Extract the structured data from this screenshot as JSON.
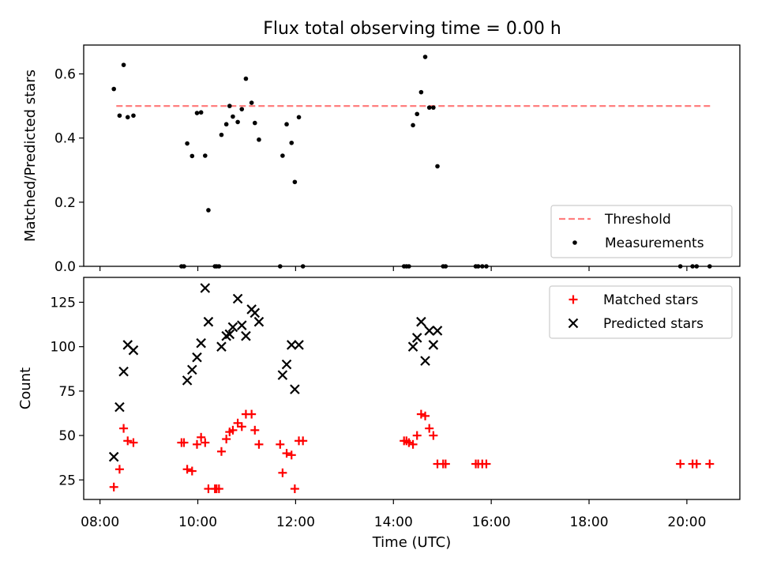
{
  "title": "Flux total observing time = 0.00 h",
  "colors": {
    "measurement": "#000000",
    "threshold": "#ff7f7f",
    "matched": "#ff0000",
    "predicted": "#000000"
  },
  "chart_data": [
    {
      "type": "scatter",
      "panel": "top",
      "title": "Flux total observing time = 0.00 h",
      "xlabel": "",
      "ylabel": "Matched/Predicted stars",
      "x_axis": "time (UTC)",
      "xlim": [
        "07:40",
        "21:05"
      ],
      "ylim": [
        0,
        0.69
      ],
      "yticks": [
        0.0,
        0.2,
        0.4,
        0.6
      ],
      "ytick_labels": [
        "0.0",
        "0.2",
        "0.4",
        "0.6"
      ],
      "grid": false,
      "legend": {
        "position": "lower right",
        "entries": [
          {
            "label": "Threshold",
            "marker": "dashed-line",
            "color": "#ff7f7f"
          },
          {
            "label": "Measurements",
            "marker": "dot",
            "color": "#000000"
          }
        ]
      },
      "threshold": {
        "value": 0.5,
        "x_start": "08:20",
        "x_end": "20:30",
        "style": "dashed",
        "color": "#ff7f7f"
      },
      "series": [
        {
          "name": "Measurements",
          "marker": "dot",
          "color": "#000000",
          "points": [
            [
              "08:17",
              0.553
            ],
            [
              "08:24",
              0.47
            ],
            [
              "08:29",
              0.628
            ],
            [
              "08:34",
              0.465
            ],
            [
              "08:41",
              0.47
            ],
            [
              "09:40",
              0.0
            ],
            [
              "09:43",
              0.0
            ],
            [
              "09:47",
              0.383
            ],
            [
              "09:53",
              0.344
            ],
            [
              "09:59",
              0.478
            ],
            [
              "10:04",
              0.48
            ],
            [
              "10:09",
              0.345
            ],
            [
              "10:13",
              0.175
            ],
            [
              "10:21",
              0.0
            ],
            [
              "10:23",
              0.0
            ],
            [
              "10:26",
              0.0
            ],
            [
              "10:29",
              0.41
            ],
            [
              "10:35",
              0.443
            ],
            [
              "10:39",
              0.5
            ],
            [
              "10:43",
              0.467
            ],
            [
              "10:49",
              0.45
            ],
            [
              "10:54",
              0.49
            ],
            [
              "10:59",
              0.585
            ],
            [
              "11:06",
              0.51
            ],
            [
              "11:10",
              0.447
            ],
            [
              "11:15",
              0.395
            ],
            [
              "11:41",
              0.0
            ],
            [
              "11:44",
              0.345
            ],
            [
              "11:49",
              0.443
            ],
            [
              "11:55",
              0.385
            ],
            [
              "11:59",
              0.263
            ],
            [
              "12:04",
              0.465
            ],
            [
              "12:09",
              0.0
            ],
            [
              "14:13",
              0.0
            ],
            [
              "14:16",
              0.0
            ],
            [
              "14:19",
              0.0
            ],
            [
              "14:24",
              0.44
            ],
            [
              "14:29",
              0.475
            ],
            [
              "14:34",
              0.543
            ],
            [
              "14:39",
              0.653
            ],
            [
              "14:44",
              0.495
            ],
            [
              "14:49",
              0.495
            ],
            [
              "14:54",
              0.312
            ],
            [
              "15:01",
              0.0
            ],
            [
              "15:04",
              0.0
            ],
            [
              "15:41",
              0.0
            ],
            [
              "15:44",
              0.0
            ],
            [
              "15:49",
              0.0
            ],
            [
              "15:54",
              0.0
            ],
            [
              "19:52",
              0.0
            ],
            [
              "20:07",
              0.0
            ],
            [
              "20:12",
              0.0
            ],
            [
              "20:28",
              0.0
            ]
          ]
        }
      ]
    },
    {
      "type": "scatter",
      "panel": "bottom",
      "title": "",
      "xlabel": "Time (UTC)",
      "ylabel": "Count",
      "x_axis": "time (UTC)",
      "xlim": [
        "07:40",
        "21:05"
      ],
      "ylim": [
        14,
        139
      ],
      "yticks": [
        25,
        50,
        75,
        100,
        125
      ],
      "ytick_labels": [
        "25",
        "50",
        "75",
        "100",
        "125"
      ],
      "xticks": [
        "08:00",
        "10:00",
        "12:00",
        "14:00",
        "16:00",
        "18:00",
        "20:00"
      ],
      "xtick_labels": [
        "08:00",
        "10:00",
        "12:00",
        "14:00",
        "16:00",
        "18:00",
        "20:00"
      ],
      "grid": false,
      "legend": {
        "position": "upper right",
        "entries": [
          {
            "label": "Matched stars",
            "marker": "plus",
            "color": "#ff0000"
          },
          {
            "label": "Predicted stars",
            "marker": "x",
            "color": "#000000"
          }
        ]
      },
      "series": [
        {
          "name": "Matched stars",
          "marker": "plus",
          "color": "#ff0000",
          "points": [
            [
              "08:17",
              21
            ],
            [
              "08:24",
              31
            ],
            [
              "08:29",
              54
            ],
            [
              "08:34",
              47
            ],
            [
              "08:41",
              46
            ],
            [
              "09:40",
              46
            ],
            [
              "09:43",
              46
            ],
            [
              "09:47",
              31
            ],
            [
              "09:53",
              30
            ],
            [
              "09:59",
              45
            ],
            [
              "10:04",
              49
            ],
            [
              "10:09",
              46
            ],
            [
              "10:13",
              20
            ],
            [
              "10:21",
              20
            ],
            [
              "10:23",
              20
            ],
            [
              "10:26",
              20
            ],
            [
              "10:29",
              41
            ],
            [
              "10:35",
              48
            ],
            [
              "10:39",
              52
            ],
            [
              "10:43",
              53
            ],
            [
              "10:49",
              57
            ],
            [
              "10:54",
              55
            ],
            [
              "10:59",
              62
            ],
            [
              "11:06",
              62
            ],
            [
              "11:10",
              53
            ],
            [
              "11:15",
              45
            ],
            [
              "11:41",
              45
            ],
            [
              "11:44",
              29
            ],
            [
              "11:49",
              40
            ],
            [
              "11:55",
              39
            ],
            [
              "11:59",
              20
            ],
            [
              "12:04",
              47
            ],
            [
              "12:09",
              47
            ],
            [
              "14:13",
              47
            ],
            [
              "14:16",
              47
            ],
            [
              "14:19",
              46
            ],
            [
              "14:24",
              45
            ],
            [
              "14:29",
              50
            ],
            [
              "14:34",
              62
            ],
            [
              "14:39",
              61
            ],
            [
              "14:44",
              54
            ],
            [
              "14:49",
              50
            ],
            [
              "14:54",
              34
            ],
            [
              "15:01",
              34
            ],
            [
              "15:04",
              34
            ],
            [
              "15:41",
              34
            ],
            [
              "15:44",
              34
            ],
            [
              "15:49",
              34
            ],
            [
              "15:54",
              34
            ],
            [
              "19:52",
              34
            ],
            [
              "20:07",
              34
            ],
            [
              "20:12",
              34
            ],
            [
              "20:28",
              34
            ]
          ]
        },
        {
          "name": "Predicted stars",
          "marker": "x",
          "color": "#000000",
          "points": [
            [
              "08:17",
              38
            ],
            [
              "08:24",
              66
            ],
            [
              "08:29",
              86
            ],
            [
              "08:34",
              101
            ],
            [
              "08:41",
              98
            ],
            [
              "09:47",
              81
            ],
            [
              "09:53",
              87
            ],
            [
              "09:59",
              94
            ],
            [
              "10:04",
              102
            ],
            [
              "10:09",
              133
            ],
            [
              "10:13",
              114
            ],
            [
              "10:29",
              100
            ],
            [
              "10:35",
              106
            ],
            [
              "10:39",
              107
            ],
            [
              "10:43",
              111
            ],
            [
              "10:49",
              127
            ],
            [
              "10:54",
              112
            ],
            [
              "10:59",
              106
            ],
            [
              "11:06",
              121
            ],
            [
              "11:10",
              119
            ],
            [
              "11:15",
              114
            ],
            [
              "11:44",
              84
            ],
            [
              "11:49",
              90
            ],
            [
              "11:55",
              101
            ],
            [
              "11:59",
              76
            ],
            [
              "12:04",
              101
            ],
            [
              "14:24",
              100
            ],
            [
              "14:29",
              105
            ],
            [
              "14:34",
              114
            ],
            [
              "14:39",
              92
            ],
            [
              "14:44",
              109
            ],
            [
              "14:49",
              101
            ],
            [
              "14:54",
              109
            ]
          ]
        }
      ]
    }
  ]
}
